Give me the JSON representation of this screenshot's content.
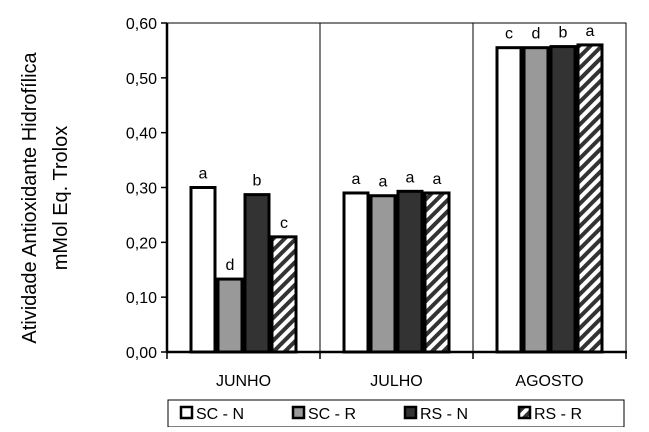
{
  "chart_data": {
    "type": "bar",
    "title": "",
    "xlabel": "",
    "ylabel_lines": [
      "Atividade Antioxidante Hidrofílica",
      "mMol Eq. Trolox"
    ],
    "ylim": [
      0,
      0.6
    ],
    "yticks": [
      "0,00",
      "0,10",
      "0,20",
      "0,30",
      "0,40",
      "0,50",
      "0,60"
    ],
    "yvalues": [
      0,
      0.1,
      0.2,
      0.3,
      0.4,
      0.5,
      0.6
    ],
    "categories": [
      "JUNHO",
      "JULHO",
      "AGOSTO"
    ],
    "series": [
      {
        "name": "SC - N",
        "values": [
          0.3,
          0.29,
          0.555
        ],
        "letters": [
          "a",
          "a",
          "c"
        ],
        "fill": "#ffffff",
        "pattern": "none"
      },
      {
        "name": "SC - R",
        "values": [
          0.133,
          0.285,
          0.555
        ],
        "letters": [
          "d",
          "a",
          "d"
        ],
        "fill": "#999999",
        "pattern": "none"
      },
      {
        "name": "RS - N",
        "values": [
          0.287,
          0.293,
          0.557
        ],
        "letters": [
          "b",
          "a",
          "b"
        ],
        "fill": "#333333",
        "pattern": "none"
      },
      {
        "name": "RS - R",
        "values": [
          0.21,
          0.29,
          0.56
        ],
        "letters": [
          "c",
          "a",
          "a"
        ],
        "fill": "#ffffff",
        "pattern": "diagonal"
      }
    ],
    "grid": "vertical category separators",
    "legend_position": "bottom"
  }
}
